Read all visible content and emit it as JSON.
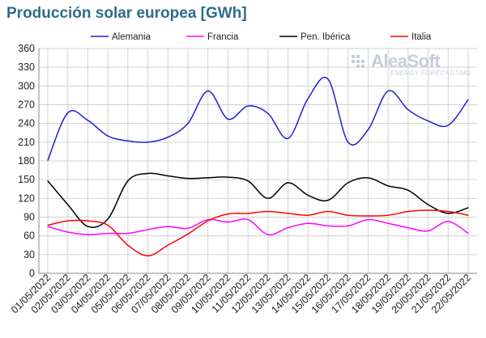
{
  "title": "Producción solar europea [GWh]",
  "logo": {
    "brand": "AleaSoft",
    "tagline": "ENERGY FORECASTING"
  },
  "chart_data": {
    "type": "line",
    "title": "Producción solar europea [GWh]",
    "xlabel": "",
    "ylabel": "",
    "ylim": [
      0,
      360
    ],
    "yticks": [
      0,
      30,
      60,
      90,
      120,
      150,
      180,
      210,
      240,
      270,
      300,
      330,
      360
    ],
    "grid": true,
    "legend_position": "top",
    "x": [
      "01/05/2022",
      "02/05/2022",
      "03/05/2022",
      "04/05/2022",
      "05/05/2022",
      "06/05/2022",
      "07/05/2022",
      "08/05/2022",
      "09/05/2022",
      "10/05/2022",
      "11/05/2022",
      "12/05/2022",
      "13/05/2022",
      "14/05/2022",
      "15/05/2022",
      "16/05/2022",
      "17/05/2022",
      "18/05/2022",
      "19/05/2022",
      "20/05/2022",
      "21/05/2022",
      "22/05/2022"
    ],
    "series": [
      {
        "name": "Alemania",
        "color": "#1f1fd1",
        "values": [
          181,
          257,
          245,
          220,
          212,
          210,
          218,
          240,
          292,
          247,
          268,
          256,
          216,
          280,
          311,
          210,
          230,
          292,
          262,
          244,
          237,
          278
        ]
      },
      {
        "name": "Francia",
        "color": "#ff00ff",
        "values": [
          75,
          66,
          62,
          64,
          64,
          70,
          75,
          72,
          86,
          82,
          86,
          62,
          73,
          80,
          76,
          76,
          86,
          80,
          73,
          68,
          83,
          64
        ]
      },
      {
        "name": "Pen. Ibérica",
        "color": "#000000",
        "values": [
          148,
          110,
          75,
          87,
          148,
          160,
          156,
          152,
          153,
          154,
          148,
          120,
          145,
          125,
          117,
          145,
          153,
          140,
          133,
          110,
          96,
          105
        ]
      },
      {
        "name": "Italia",
        "color": "#ff0000",
        "values": [
          77,
          84,
          84,
          77,
          45,
          28,
          45,
          63,
          84,
          95,
          96,
          99,
          96,
          93,
          99,
          93,
          92,
          93,
          99,
          101,
          99,
          93
        ]
      }
    ]
  }
}
